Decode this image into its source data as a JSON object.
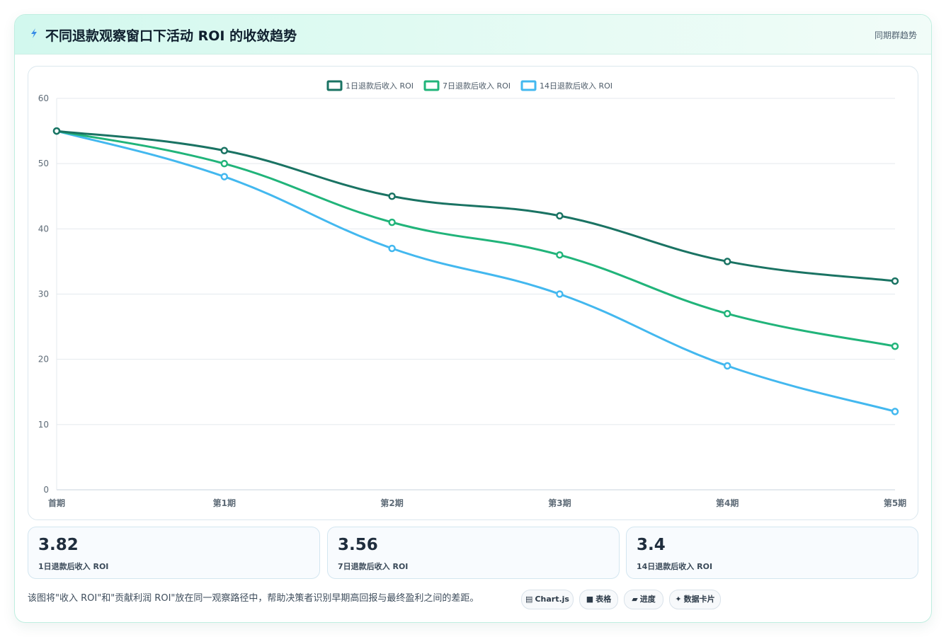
{
  "header": {
    "title": "不同退款观察窗口下活动 ROI 的收敛趋势",
    "tag": "同期群趋势"
  },
  "chart_data": {
    "type": "line",
    "categories": [
      "首期",
      "第1期",
      "第2期",
      "第3期",
      "第4期",
      "第5期"
    ],
    "series": [
      {
        "name": "1日退款后收入 ROI",
        "color": "#1a7363",
        "values": [
          55,
          52,
          45,
          42,
          35,
          32
        ]
      },
      {
        "name": "7日退款后收入 ROI",
        "color": "#21b47a",
        "values": [
          55,
          50,
          41,
          36,
          27,
          22
        ]
      },
      {
        "name": "14日退款后收入 ROI",
        "color": "#43b8ef",
        "values": [
          55,
          48,
          37,
          30,
          19,
          12
        ]
      }
    ],
    "ylim": [
      0,
      60
    ],
    "yticks": [
      0,
      10,
      20,
      30,
      40,
      50,
      60
    ],
    "grid": true,
    "legend": "top-center",
    "title": "",
    "xlabel": "",
    "ylabel": ""
  },
  "stats": [
    {
      "value": "3.82",
      "label": "1日退款后收入 ROI",
      "color": "#0f7a63"
    },
    {
      "value": "3.56",
      "label": "7日退款后收入 ROI",
      "color": "#18b57a"
    },
    {
      "value": "3.4",
      "label": "14日退款后收入 ROI",
      "color": "#3db7ee"
    }
  ],
  "footnote": "该图将\"收入 ROI\"和\"贡献利润 ROI\"放在同一观察路径中，帮助决策者识别早期高回报与最终盈利之间的差距。",
  "pills": [
    {
      "icon": "chart-icon",
      "label": "Chart.js"
    },
    {
      "icon": "table-icon",
      "label": "表格"
    },
    {
      "icon": "progress-icon",
      "label": "进度"
    },
    {
      "icon": "sparkle-icon",
      "label": "数据卡片"
    }
  ]
}
